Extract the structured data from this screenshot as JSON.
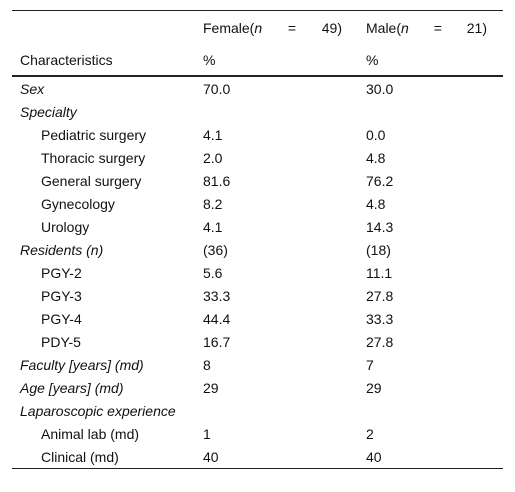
{
  "header": {
    "col1_label": "Characteristics",
    "female": {
      "name": "Female(",
      "n": "n",
      "eq": "=",
      "count": "49)",
      "unit": "%"
    },
    "male": {
      "name": "Male(",
      "n": "n",
      "eq": "=",
      "count": "21)",
      "unit": "%"
    }
  },
  "rows": [
    {
      "label": "Sex",
      "female": "70.0",
      "male": "30.0"
    },
    {
      "label": "Specialty",
      "female": "",
      "male": ""
    },
    {
      "label": "Pediatric surgery",
      "female": "4.1",
      "male": "0.0"
    },
    {
      "label": "Thoracic surgery",
      "female": "2.0",
      "male": "4.8"
    },
    {
      "label": "General surgery",
      "female": "81.6",
      "male": "76.2"
    },
    {
      "label": "Gynecology",
      "female": "8.2",
      "male": "4.8"
    },
    {
      "label": "Urology",
      "female": "4.1",
      "male": "14.3"
    },
    {
      "label": "Residents (n)",
      "female": "(36)",
      "male": "(18)"
    },
    {
      "label": "PGY-2",
      "female": "5.6",
      "male": "11.1"
    },
    {
      "label": "PGY-3",
      "female": "33.3",
      "male": "27.8"
    },
    {
      "label": "PGY-4",
      "female": "44.4",
      "male": "33.3"
    },
    {
      "label": "PDY-5",
      "female": "16.7",
      "male": "27.8"
    },
    {
      "label": "Faculty [years] (md)",
      "female": "8",
      "male": "7"
    },
    {
      "label": "Age [years] (md)",
      "female": "29",
      "male": "29"
    },
    {
      "label": "Laparoscopic experience",
      "female": "",
      "male": ""
    },
    {
      "label": "Animal lab (md)",
      "female": "1",
      "male": "2"
    },
    {
      "label": "Clinical (md)",
      "female": "40",
      "male": "40"
    }
  ]
}
